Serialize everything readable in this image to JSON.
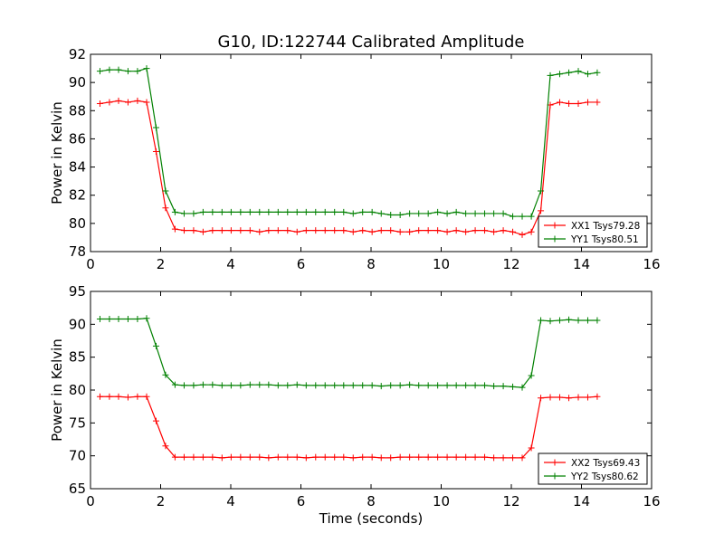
{
  "title": "G10, ID:122744 Calibrated Amplitude",
  "colors": {
    "red": "#ff0000",
    "green": "#008000"
  },
  "chart_data": [
    {
      "type": "line",
      "ylabel": "Power in Kelvin",
      "xlabel": "",
      "xlim": [
        0,
        16
      ],
      "ylim": [
        78,
        92
      ],
      "xticks": [
        "0",
        "2",
        "4",
        "6",
        "8",
        "10",
        "12",
        "14",
        "16"
      ],
      "yticks": [
        "78",
        "80",
        "82",
        "84",
        "86",
        "88",
        "90",
        "92"
      ],
      "legend_position": "lower-right",
      "x": [
        0.27,
        0.54,
        0.8,
        1.07,
        1.34,
        1.6,
        1.87,
        2.14,
        2.41,
        2.67,
        2.94,
        3.21,
        3.48,
        3.75,
        4.01,
        4.28,
        4.55,
        4.82,
        5.08,
        5.35,
        5.62,
        5.89,
        6.15,
        6.42,
        6.69,
        6.96,
        7.22,
        7.49,
        7.76,
        8.03,
        8.29,
        8.56,
        8.83,
        9.1,
        9.36,
        9.63,
        9.9,
        10.17,
        10.43,
        10.7,
        10.97,
        11.24,
        11.5,
        11.77,
        12.04,
        12.31,
        12.57,
        12.84,
        13.11,
        13.38,
        13.64,
        13.91,
        14.18,
        14.45
      ],
      "series": [
        {
          "name": "XX1 Tsys79.28",
          "color": "#ff0000",
          "values": [
            88.5,
            88.6,
            88.7,
            88.6,
            88.7,
            88.6,
            85.1,
            81.1,
            79.6,
            79.5,
            79.5,
            79.4,
            79.5,
            79.5,
            79.5,
            79.5,
            79.5,
            79.4,
            79.5,
            79.5,
            79.5,
            79.4,
            79.5,
            79.5,
            79.5,
            79.5,
            79.5,
            79.4,
            79.5,
            79.4,
            79.5,
            79.5,
            79.4,
            79.4,
            79.5,
            79.5,
            79.5,
            79.4,
            79.5,
            79.4,
            79.5,
            79.5,
            79.4,
            79.5,
            79.4,
            79.2,
            79.4,
            80.9,
            88.4,
            88.6,
            88.5,
            88.5,
            88.6,
            88.6
          ]
        },
        {
          "name": "YY1 Tsys80.51",
          "color": "#008000",
          "values": [
            90.8,
            90.9,
            90.9,
            90.8,
            90.8,
            91.0,
            86.8,
            82.3,
            80.8,
            80.7,
            80.7,
            80.8,
            80.8,
            80.8,
            80.8,
            80.8,
            80.8,
            80.8,
            80.8,
            80.8,
            80.8,
            80.8,
            80.8,
            80.8,
            80.8,
            80.8,
            80.8,
            80.7,
            80.8,
            80.8,
            80.7,
            80.6,
            80.6,
            80.7,
            80.7,
            80.7,
            80.8,
            80.7,
            80.8,
            80.7,
            80.7,
            80.7,
            80.7,
            80.7,
            80.5,
            80.5,
            80.5,
            82.3,
            90.5,
            90.6,
            90.7,
            90.8,
            90.6,
            90.7
          ]
        }
      ]
    },
    {
      "type": "line",
      "ylabel": "Power in Kelvin",
      "xlabel": "Time (seconds)",
      "xlim": [
        0,
        16
      ],
      "ylim": [
        65,
        95
      ],
      "xticks": [
        "0",
        "2",
        "4",
        "6",
        "8",
        "10",
        "12",
        "14",
        "16"
      ],
      "yticks": [
        "65",
        "70",
        "75",
        "80",
        "85",
        "90",
        "95"
      ],
      "legend_position": "lower-right",
      "x": [
        0.27,
        0.54,
        0.8,
        1.07,
        1.34,
        1.6,
        1.87,
        2.14,
        2.41,
        2.67,
        2.94,
        3.21,
        3.48,
        3.75,
        4.01,
        4.28,
        4.55,
        4.82,
        5.08,
        5.35,
        5.62,
        5.89,
        6.15,
        6.42,
        6.69,
        6.96,
        7.22,
        7.49,
        7.76,
        8.03,
        8.29,
        8.56,
        8.83,
        9.1,
        9.36,
        9.63,
        9.9,
        10.17,
        10.43,
        10.7,
        10.97,
        11.24,
        11.5,
        11.77,
        12.04,
        12.31,
        12.57,
        12.84,
        13.11,
        13.38,
        13.64,
        13.91,
        14.18,
        14.45
      ],
      "series": [
        {
          "name": "XX2 Tsys69.43",
          "color": "#ff0000",
          "values": [
            79.0,
            79.0,
            79.0,
            78.9,
            79.0,
            79.0,
            75.3,
            71.5,
            69.8,
            69.8,
            69.8,
            69.8,
            69.8,
            69.7,
            69.8,
            69.8,
            69.8,
            69.8,
            69.7,
            69.8,
            69.8,
            69.8,
            69.7,
            69.8,
            69.8,
            69.8,
            69.8,
            69.7,
            69.8,
            69.8,
            69.7,
            69.7,
            69.8,
            69.8,
            69.8,
            69.8,
            69.8,
            69.8,
            69.8,
            69.8,
            69.8,
            69.8,
            69.7,
            69.7,
            69.7,
            69.7,
            71.2,
            78.8,
            78.9,
            78.9,
            78.8,
            78.9,
            78.9,
            79.0
          ]
        },
        {
          "name": "YY2 Tsys80.62",
          "color": "#008000",
          "values": [
            90.8,
            90.8,
            90.8,
            90.8,
            90.8,
            90.9,
            86.7,
            82.3,
            80.8,
            80.7,
            80.7,
            80.8,
            80.8,
            80.7,
            80.7,
            80.7,
            80.8,
            80.8,
            80.8,
            80.7,
            80.7,
            80.8,
            80.7,
            80.7,
            80.7,
            80.7,
            80.7,
            80.7,
            80.7,
            80.7,
            80.6,
            80.7,
            80.7,
            80.8,
            80.7,
            80.7,
            80.7,
            80.7,
            80.7,
            80.7,
            80.7,
            80.7,
            80.6,
            80.6,
            80.5,
            80.4,
            82.2,
            90.6,
            90.5,
            90.6,
            90.7,
            90.6,
            90.6,
            90.6
          ]
        }
      ]
    }
  ]
}
